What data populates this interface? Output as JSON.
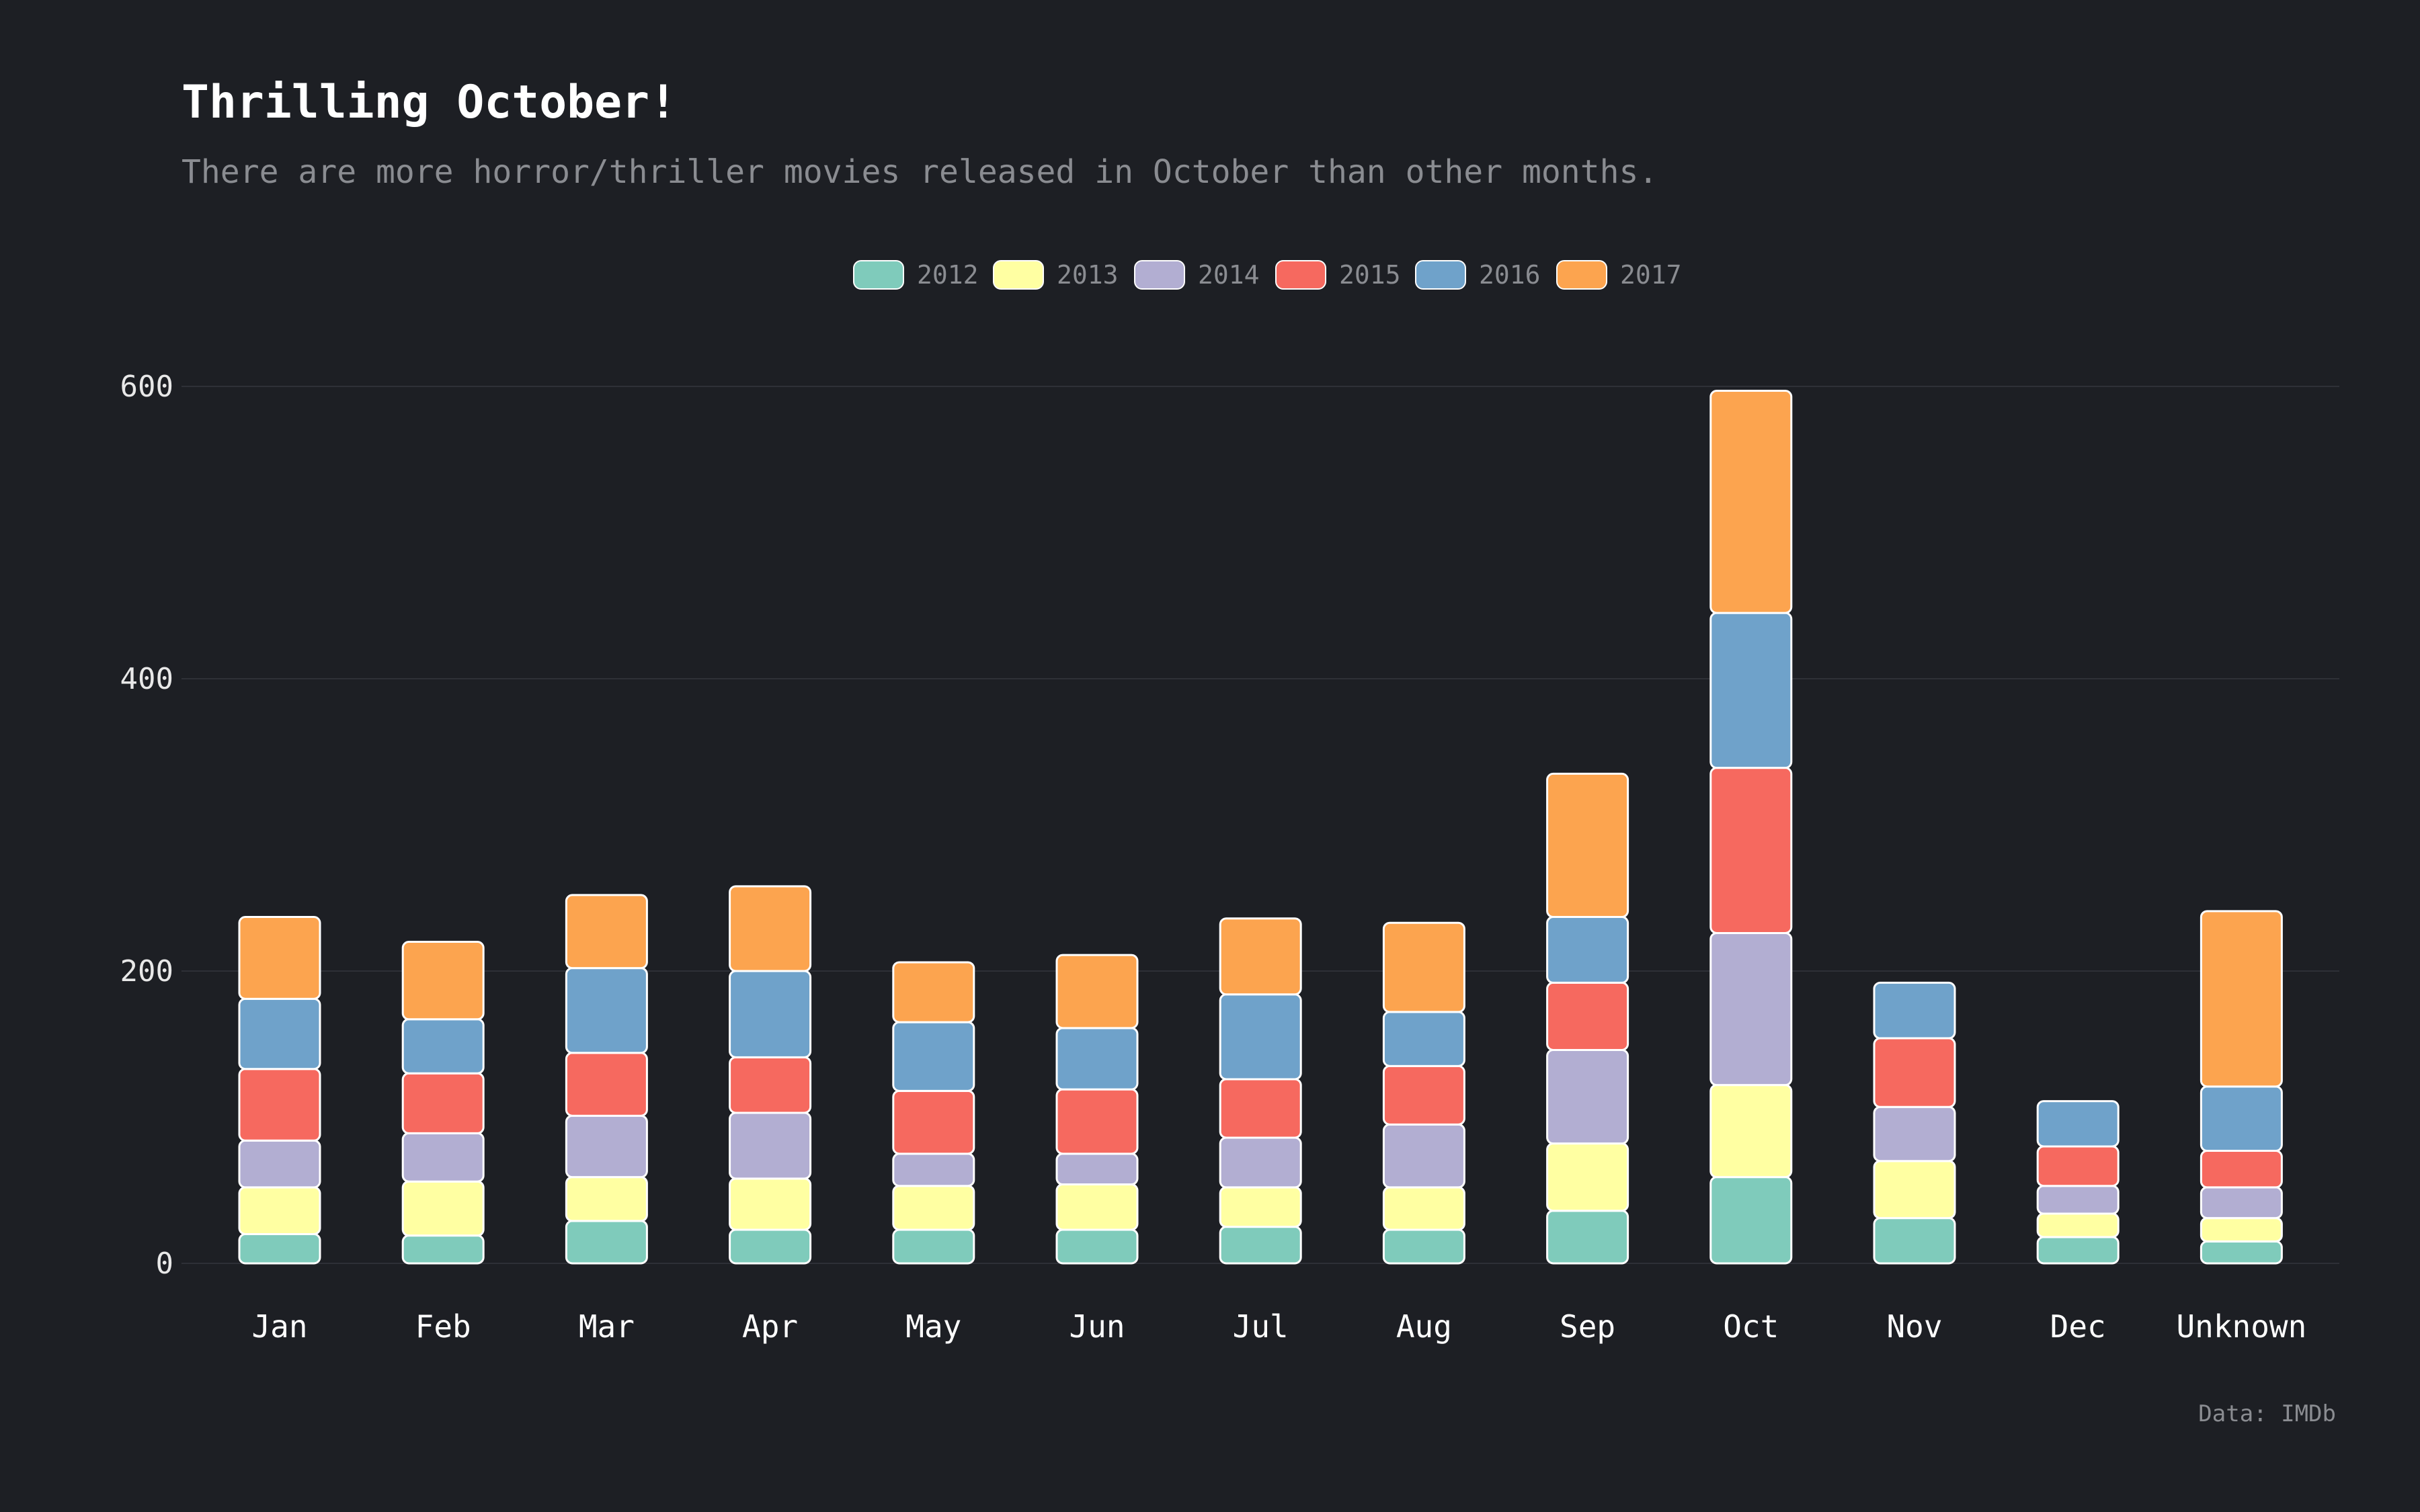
{
  "chart_data": {
    "type": "bar",
    "stacked": true,
    "title": "Thrilling October!",
    "subtitle": "There are more horror/thriller movies released in October than other months.",
    "source": "Data: IMDb",
    "xlabel": "",
    "ylabel": "",
    "ylim": [
      0,
      600
    ],
    "yticks": [
      0,
      200,
      400,
      600
    ],
    "grid": true,
    "legend_position": "top-center",
    "categories": [
      "Jan",
      "Feb",
      "Mar",
      "Apr",
      "May",
      "Jun",
      "Jul",
      "Aug",
      "Sep",
      "Oct",
      "Nov",
      "Dec",
      "Unknown"
    ],
    "series": [
      {
        "name": "2012",
        "color": "#7fcbbb",
        "values": [
          20,
          19,
          29,
          23,
          23,
          23,
          25,
          23,
          36,
          59,
          31,
          18,
          15
        ]
      },
      {
        "name": "2013",
        "color": "#ffffa2",
        "values": [
          32,
          37,
          30,
          35,
          30,
          31,
          27,
          29,
          46,
          63,
          39,
          16,
          16
        ]
      },
      {
        "name": "2014",
        "color": "#b2aed2",
        "values": [
          32,
          33,
          42,
          45,
          22,
          21,
          34,
          43,
          64,
          104,
          37,
          19,
          21
        ]
      },
      {
        "name": "2015",
        "color": "#f6695f",
        "values": [
          49,
          41,
          43,
          38,
          43,
          44,
          40,
          40,
          46,
          113,
          47,
          27,
          25
        ]
      },
      {
        "name": "2016",
        "color": "#6fa2ca",
        "values": [
          48,
          37,
          58,
          59,
          47,
          42,
          58,
          37,
          45,
          106,
          38,
          31,
          44
        ]
      },
      {
        "name": "2017",
        "color": "#fca44f",
        "values": [
          56,
          53,
          50,
          58,
          41,
          50,
          52,
          61,
          98,
          152,
          0,
          0,
          120
        ]
      }
    ]
  }
}
